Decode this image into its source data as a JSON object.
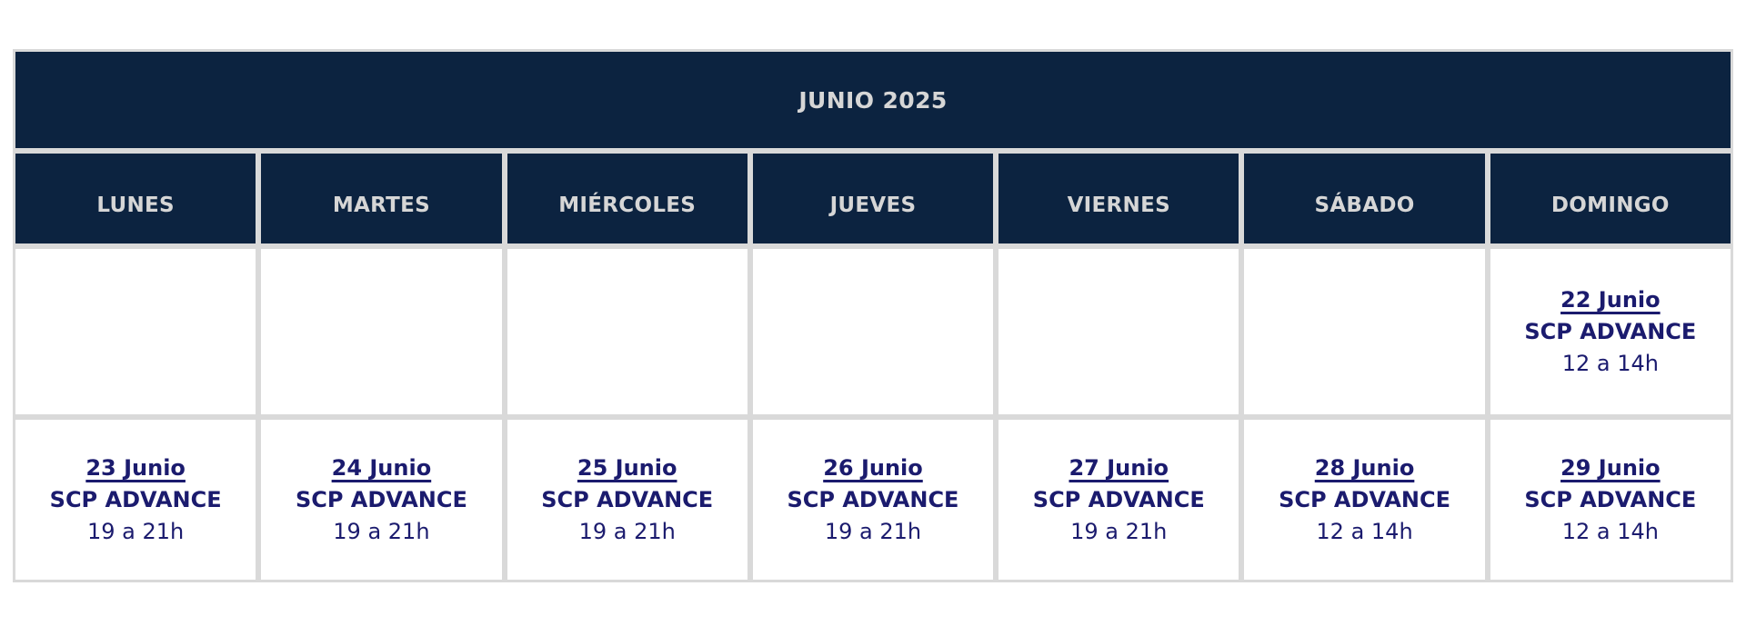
{
  "theme": {
    "page_bg": "#ffffff",
    "header_bg": "#0c2340",
    "header_text": "#d6d6d6",
    "cell_text": "#1b1b6e",
    "border": "#d9d9d9",
    "cell_bg": "#ffffff"
  },
  "calendar": {
    "title": "JUNIO 2025",
    "day_headers": [
      "LUNES",
      "MARTES",
      "MIÉRCOLES",
      "JUEVES",
      "VIERNES",
      "SÁBADO",
      "DOMINGO"
    ],
    "weeks": [
      {
        "cells": [
          null,
          null,
          null,
          null,
          null,
          null,
          {
            "date": "22 Junio",
            "event": "SCP ADVANCE",
            "time": "12 a 14h"
          }
        ]
      },
      {
        "cells": [
          {
            "date": "23 Junio",
            "event": "SCP ADVANCE",
            "time": "19 a 21h"
          },
          {
            "date": "24 Junio",
            "event": "SCP ADVANCE",
            "time": "19 a 21h"
          },
          {
            "date": "25 Junio",
            "event": "SCP ADVANCE",
            "time": "19 a 21h"
          },
          {
            "date": "26 Junio",
            "event": "SCP ADVANCE",
            "time": "19 a 21h"
          },
          {
            "date": "27 Junio",
            "event": "SCP ADVANCE",
            "time": "19 a 21h"
          },
          {
            "date": "28 Junio",
            "event": "SCP ADVANCE",
            "time": "12 a 14h"
          },
          {
            "date": "29 Junio",
            "event": "SCP ADVANCE",
            "time": "12 a 14h"
          }
        ]
      }
    ]
  }
}
